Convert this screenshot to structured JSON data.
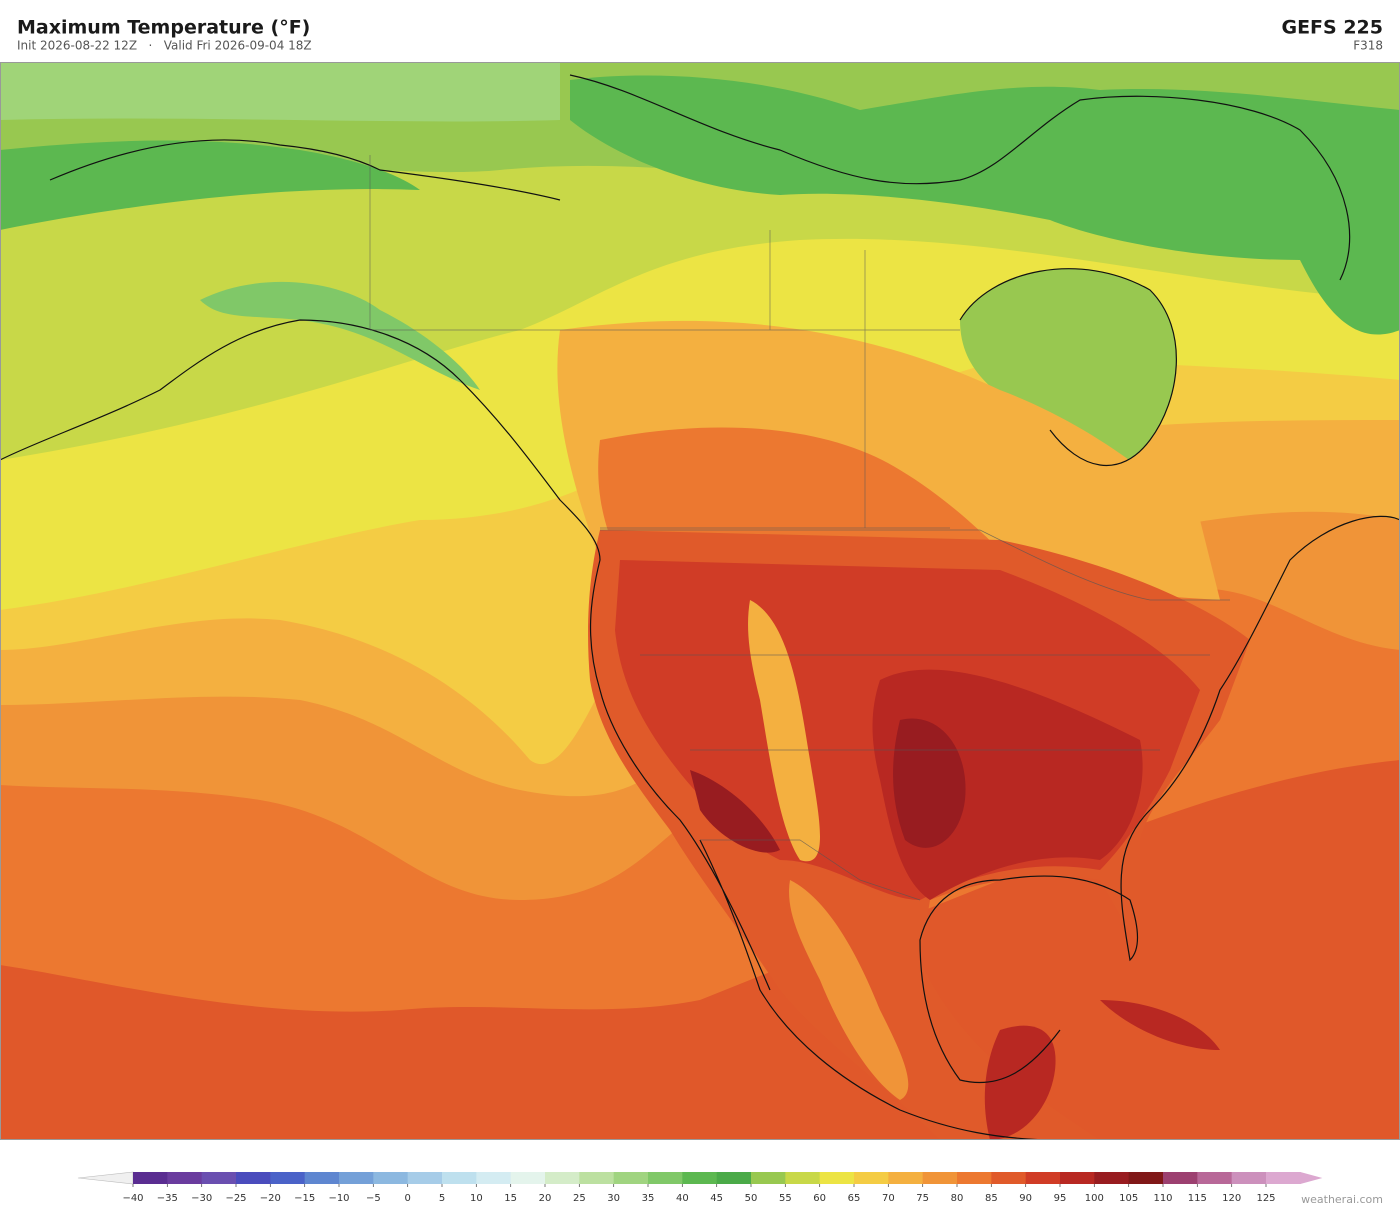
{
  "header": {
    "title": "Maximum Temperature  (°F)",
    "subtitle": "Init 2026-08-22 12Z   ·   Valid Fri 2026-09-04 18Z",
    "model": "GEFS  225",
    "forecast_hour": "F318"
  },
  "colorbar": {
    "ticks": [
      {
        "value": -40,
        "label": "−40"
      },
      {
        "value": -35,
        "label": "−35"
      },
      {
        "value": -30,
        "label": "−30"
      },
      {
        "value": -25,
        "label": "−25"
      },
      {
        "value": -20,
        "label": "−20"
      },
      {
        "value": -15,
        "label": "−15"
      },
      {
        "value": -10,
        "label": "−10"
      },
      {
        "value": -5,
        "label": "−5"
      },
      0,
      5,
      10,
      15,
      20,
      25,
      30,
      35,
      40,
      45,
      50,
      55,
      60,
      65,
      70,
      75,
      80,
      85,
      90,
      95,
      100,
      105,
      110,
      115,
      120,
      125
    ],
    "colors": [
      "#5a2d91",
      "#6a3c9e",
      "#6a4fb0",
      "#4a4cbd",
      "#4a62c8",
      "#5e86d0",
      "#74a0d8",
      "#8cb8e0",
      "#a6cce8",
      "#bee0ee",
      "#d4ecf2",
      "#e4f4ec",
      "#d4ecc8",
      "#bce0a0",
      "#a0d480",
      "#80c868",
      "#5cb850",
      "#4aaa48",
      "#98c850",
      "#c8d848",
      "#ece444",
      "#f4cc44",
      "#f4b040",
      "#f09438",
      "#ec7830",
      "#e05a2a",
      "#d03c26",
      "#b82822",
      "#981c20",
      "#801818",
      "#9c4070",
      "#b86898",
      "#cc90bc",
      "#dca8d0"
    ],
    "under_color": "#f0f0f0",
    "over_color": "#dca8d0"
  },
  "credit": "weatherai.com"
}
